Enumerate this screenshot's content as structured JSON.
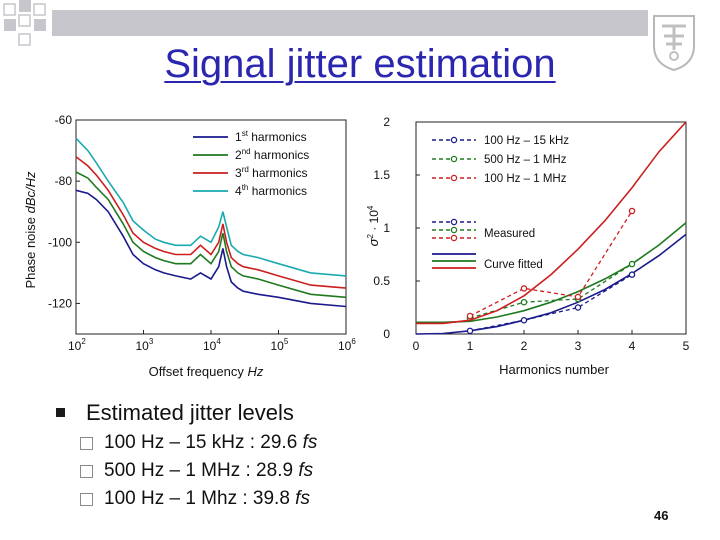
{
  "slide": {
    "title": "Signal jitter estimation",
    "page_number": "46"
  },
  "decor": {
    "corner_squares_color": "#c6c6cc",
    "top_bar_color": "#c6c6cc",
    "emblem_icon": "university-emblem-icon",
    "title_color": "#2b26b0"
  },
  "chart_data": [
    {
      "type": "line",
      "x_scale": "log",
      "xlim": [
        100,
        1000000
      ],
      "ylim": [
        -130,
        -60
      ],
      "x_ticks": [
        100,
        1000,
        10000,
        100000,
        1000000
      ],
      "x_tick_labels": [
        {
          "base": "10",
          "exp": "2"
        },
        {
          "base": "10",
          "exp": "3"
        },
        {
          "base": "10",
          "exp": "4"
        },
        {
          "base": "10",
          "exp": "5"
        },
        {
          "base": "10",
          "exp": "6"
        }
      ],
      "y_ticks": [
        -60,
        -80,
        -100,
        -120
      ],
      "y_tick_labels": [
        "-60",
        "-80",
        "-100",
        "-120"
      ],
      "xlabel": {
        "text": "Offset frequency ",
        "unit": "Hz"
      },
      "ylabel": {
        "text": "Phase noise ",
        "unit": "dBc/Hz"
      },
      "grid": false,
      "legend_position": "top-right",
      "series": [
        {
          "num": "1",
          "sup": "st",
          "rest": " harmonics",
          "color": "#1a1a8c",
          "x": [
            100,
            150,
            200,
            300,
            500,
            700,
            1000,
            1500,
            2000,
            3000,
            5000,
            7000,
            10000,
            13000,
            15000,
            17000,
            20000,
            25000,
            30000,
            50000,
            100000,
            300000,
            1000000
          ],
          "y": [
            -83,
            -84,
            -86,
            -90,
            -98,
            -104,
            -107,
            -109,
            -110,
            -111,
            -112,
            -110,
            -112,
            -108,
            -102,
            -108,
            -113,
            -115,
            -116,
            -117,
            -118,
            -120,
            -121
          ]
        },
        {
          "num": "2",
          "sup": "nd",
          "rest": " harmonics",
          "color": "#1f7a1f",
          "x": [
            100,
            150,
            200,
            300,
            500,
            700,
            1000,
            1500,
            2000,
            3000,
            5000,
            7000,
            10000,
            13000,
            15000,
            17000,
            20000,
            25000,
            30000,
            50000,
            100000,
            300000,
            1000000
          ],
          "y": [
            -77,
            -79,
            -82,
            -86,
            -94,
            -100,
            -103,
            -105,
            -106,
            -107,
            -107,
            -104,
            -107,
            -103,
            -97,
            -103,
            -108,
            -110,
            -111,
            -112,
            -114,
            -117,
            -118
          ]
        },
        {
          "num": "3",
          "sup": "rd",
          "rest": " harmonics",
          "color": "#cc1f1f",
          "x": [
            100,
            150,
            200,
            300,
            500,
            700,
            1000,
            1500,
            2000,
            3000,
            5000,
            7000,
            10000,
            13000,
            15000,
            17000,
            20000,
            25000,
            30000,
            50000,
            100000,
            300000,
            1000000
          ],
          "y": [
            -72,
            -75,
            -78,
            -83,
            -91,
            -97,
            -100,
            -102,
            -103,
            -104,
            -104,
            -101,
            -104,
            -100,
            -94,
            -100,
            -105,
            -107,
            -108,
            -109,
            -111,
            -114,
            -115
          ]
        },
        {
          "num": "4",
          "sup": "th",
          "rest": " harmonics",
          "color": "#1aaab0",
          "x": [
            100,
            150,
            200,
            300,
            500,
            700,
            1000,
            1500,
            2000,
            3000,
            5000,
            7000,
            10000,
            13000,
            15000,
            17000,
            20000,
            25000,
            30000,
            50000,
            100000,
            300000,
            1000000
          ],
          "y": [
            -66,
            -70,
            -74,
            -80,
            -87,
            -93,
            -96,
            -99,
            -100,
            -101,
            -101,
            -98,
            -100,
            -95,
            -90,
            -95,
            -101,
            -103,
            -104,
            -105,
            -107,
            -110,
            -111
          ]
        }
      ]
    },
    {
      "type": "line",
      "xlim": [
        0,
        5
      ],
      "ylim": [
        0,
        2
      ],
      "x_ticks": [
        0,
        1,
        2,
        3,
        4,
        5
      ],
      "x_tick_labels": [
        "0",
        "1",
        "2",
        "3",
        "4",
        "5"
      ],
      "y_ticks": [
        0,
        0.5,
        1,
        1.5,
        2
      ],
      "y_tick_labels": [
        "0",
        "0.5",
        "1",
        "1.5",
        "2"
      ],
      "xlabel": "Harmonics number",
      "ylabel": {
        "sigma": "σ",
        "sq": "2",
        "mult": " · 10",
        "exp": "4"
      },
      "grid": false,
      "legend_position": "top-left",
      "legend_measured_label": "Measured",
      "legend_fitted_label": "Curve fitted",
      "series": [
        {
          "name": "100 Hz – 15 kHz",
          "color": "#1a1a8c",
          "measured": {
            "x": [
              1,
              2,
              3,
              4
            ],
            "y": [
              0.03,
              0.13,
              0.25,
              0.56
            ]
          },
          "fitted": {
            "x": [
              0,
              0.5,
              1,
              1.5,
              2,
              2.5,
              3,
              3.5,
              4,
              4.5,
              5
            ],
            "y": [
              0,
              0.005,
              0.03,
              0.07,
              0.13,
              0.2,
              0.3,
              0.42,
              0.57,
              0.74,
              0.94
            ]
          }
        },
        {
          "name": "500 Hz – 1 MHz",
          "color": "#1f7a1f",
          "measured": {
            "x": [
              1,
              2,
              3,
              4
            ],
            "y": [
              0.15,
              0.3,
              0.33,
              0.66
            ]
          },
          "fitted": {
            "x": [
              0,
              0.5,
              1,
              1.5,
              2,
              2.5,
              3,
              3.5,
              4,
              4.5,
              5
            ],
            "y": [
              0.11,
              0.11,
              0.12,
              0.16,
              0.22,
              0.3,
              0.4,
              0.52,
              0.66,
              0.84,
              1.05
            ]
          }
        },
        {
          "name": "100 Hz – 1 MHz",
          "color": "#cc1f1f",
          "measured": {
            "x": [
              1,
              2,
              3,
              4
            ],
            "y": [
              0.17,
              0.43,
              0.35,
              1.16
            ]
          },
          "fitted": {
            "x": [
              0,
              0.5,
              1,
              1.5,
              2,
              2.5,
              3,
              3.5,
              4,
              4.5,
              5
            ],
            "y": [
              0.1,
              0.1,
              0.13,
              0.22,
              0.36,
              0.56,
              0.8,
              1.07,
              1.38,
              1.72,
              2.0
            ]
          }
        }
      ]
    }
  ],
  "bullets": {
    "main": "Estimated jitter levels",
    "items": [
      {
        "text": "100 Hz – 15 kHz : 29.6 ",
        "unit": "fs"
      },
      {
        "text": "500 Hz – 1 MHz  : 28.9 ",
        "unit": "fs"
      },
      {
        "text": "100 Hz – 1 Mhz  :  39.8 ",
        "unit": "fs"
      }
    ]
  }
}
